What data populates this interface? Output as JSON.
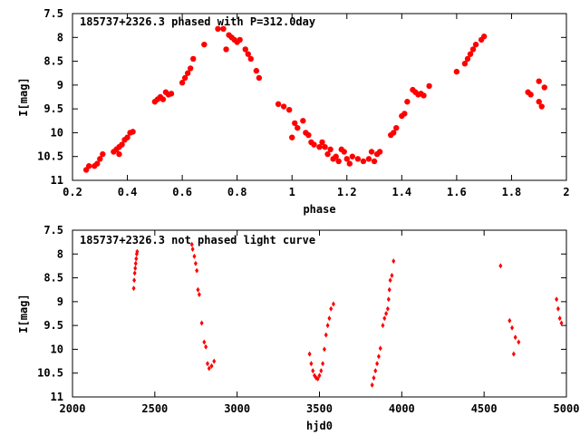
{
  "chart_data": [
    {
      "type": "scatter",
      "title": "185737+2326.3 phased with P=312.0day",
      "xlabel": "phase",
      "ylabel": "I[mag]",
      "xlim": [
        0.2,
        2
      ],
      "ylim": [
        11,
        7.5
      ],
      "y_inverted": true,
      "xticks": [
        0.2,
        0.4,
        0.6,
        0.8,
        1,
        1.2,
        1.4,
        1.6,
        1.8,
        2
      ],
      "xtick_labels": [
        "0.2",
        "0.4",
        "0.6",
        "0.8",
        "1",
        "1.2",
        "1.4",
        "1.6",
        "1.8",
        "2"
      ],
      "yticks": [
        7.5,
        8,
        8.5,
        9,
        9.5,
        10,
        10.5,
        11
      ],
      "ytick_labels": [
        "7.5",
        "8",
        "8.5",
        "9",
        "9.5",
        "10",
        "10.5",
        "11"
      ],
      "marker": "filled-circle",
      "series": [
        {
          "color": "#ff0000",
          "points": [
            [
              0.25,
              10.78
            ],
            [
              0.26,
              10.7
            ],
            [
              0.28,
              10.7
            ],
            [
              0.29,
              10.65
            ],
            [
              0.3,
              10.55
            ],
            [
              0.31,
              10.45
            ],
            [
              0.35,
              10.4
            ],
            [
              0.36,
              10.35
            ],
            [
              0.37,
              10.45
            ],
            [
              0.37,
              10.3
            ],
            [
              0.38,
              10.25
            ],
            [
              0.39,
              10.15
            ],
            [
              0.4,
              10.1
            ],
            [
              0.41,
              10.0
            ],
            [
              0.42,
              9.98
            ],
            [
              0.5,
              9.35
            ],
            [
              0.51,
              9.3
            ],
            [
              0.52,
              9.25
            ],
            [
              0.53,
              9.3
            ],
            [
              0.54,
              9.15
            ],
            [
              0.55,
              9.2
            ],
            [
              0.56,
              9.18
            ],
            [
              0.6,
              8.95
            ],
            [
              0.61,
              8.85
            ],
            [
              0.62,
              8.75
            ],
            [
              0.63,
              8.65
            ],
            [
              0.64,
              8.45
            ],
            [
              0.68,
              8.15
            ],
            [
              0.73,
              7.82
            ],
            [
              0.75,
              7.82
            ],
            [
              0.76,
              8.25
            ],
            [
              0.77,
              7.95
            ],
            [
              0.78,
              8.0
            ],
            [
              0.79,
              8.05
            ],
            [
              0.8,
              8.1
            ],
            [
              0.81,
              8.05
            ],
            [
              0.83,
              8.25
            ],
            [
              0.84,
              8.35
            ],
            [
              0.85,
              8.45
            ],
            [
              0.87,
              8.7
            ],
            [
              0.88,
              8.85
            ],
            [
              0.95,
              9.4
            ],
            [
              0.97,
              9.45
            ],
            [
              0.99,
              9.52
            ],
            [
              1.0,
              10.1
            ],
            [
              1.01,
              9.8
            ],
            [
              1.02,
              9.9
            ],
            [
              1.04,
              9.75
            ],
            [
              1.05,
              10.0
            ],
            [
              1.06,
              10.05
            ],
            [
              1.07,
              10.2
            ],
            [
              1.08,
              10.25
            ],
            [
              1.1,
              10.3
            ],
            [
              1.11,
              10.2
            ],
            [
              1.12,
              10.3
            ],
            [
              1.13,
              10.45
            ],
            [
              1.14,
              10.35
            ],
            [
              1.15,
              10.55
            ],
            [
              1.16,
              10.5
            ],
            [
              1.17,
              10.6
            ],
            [
              1.18,
              10.35
            ],
            [
              1.19,
              10.4
            ],
            [
              1.2,
              10.55
            ],
            [
              1.21,
              10.65
            ],
            [
              1.22,
              10.5
            ],
            [
              1.24,
              10.55
            ],
            [
              1.26,
              10.6
            ],
            [
              1.28,
              10.55
            ],
            [
              1.29,
              10.4
            ],
            [
              1.3,
              10.6
            ],
            [
              1.31,
              10.45
            ],
            [
              1.32,
              10.4
            ],
            [
              1.36,
              10.05
            ],
            [
              1.37,
              10.0
            ],
            [
              1.38,
              9.9
            ],
            [
              1.4,
              9.65
            ],
            [
              1.41,
              9.6
            ],
            [
              1.42,
              9.35
            ],
            [
              1.44,
              9.1
            ],
            [
              1.45,
              9.15
            ],
            [
              1.46,
              9.2
            ],
            [
              1.47,
              9.18
            ],
            [
              1.48,
              9.22
            ],
            [
              1.5,
              9.02
            ],
            [
              1.6,
              8.72
            ],
            [
              1.63,
              8.55
            ],
            [
              1.64,
              8.45
            ],
            [
              1.65,
              8.35
            ],
            [
              1.66,
              8.25
            ],
            [
              1.67,
              8.15
            ],
            [
              1.69,
              8.05
            ],
            [
              1.7,
              7.98
            ],
            [
              1.86,
              9.15
            ],
            [
              1.87,
              9.2
            ],
            [
              1.9,
              8.92
            ],
            [
              1.9,
              9.35
            ],
            [
              1.91,
              9.45
            ],
            [
              1.92,
              9.05
            ]
          ]
        }
      ]
    },
    {
      "type": "scatter",
      "title": "185737+2326.3 not phased light curve",
      "xlabel": "hjd0",
      "ylabel": "I[mag]",
      "xlim": [
        2000,
        5000
      ],
      "ylim": [
        11,
        7.5
      ],
      "y_inverted": true,
      "xticks": [
        2000,
        2500,
        3000,
        3500,
        4000,
        4500,
        5000
      ],
      "xtick_labels": [
        "2000",
        "2500",
        "3000",
        "3500",
        "4000",
        "4500",
        "5000"
      ],
      "yticks": [
        7.5,
        8,
        8.5,
        9,
        9.5,
        10,
        10.5,
        11
      ],
      "ytick_labels": [
        "7.5",
        "8",
        "8.5",
        "9",
        "9.5",
        "10",
        "10.5",
        "11"
      ],
      "marker": "small-diamond",
      "series": [
        {
          "color": "#ff0000",
          "points": [
            [
              2372,
              8.72
            ],
            [
              2375,
              8.55
            ],
            [
              2378,
              8.4
            ],
            [
              2381,
              8.3
            ],
            [
              2384,
              8.2
            ],
            [
              2387,
              8.1
            ],
            [
              2390,
              8.0
            ],
            [
              2393,
              7.95
            ],
            [
              2725,
              7.8
            ],
            [
              2730,
              7.9
            ],
            [
              2740,
              8.05
            ],
            [
              2748,
              8.2
            ],
            [
              2755,
              8.35
            ],
            [
              2762,
              8.75
            ],
            [
              2770,
              8.85
            ],
            [
              2785,
              9.45
            ],
            [
              2800,
              9.85
            ],
            [
              2810,
              9.95
            ],
            [
              2820,
              10.3
            ],
            [
              2830,
              10.4
            ],
            [
              2845,
              10.35
            ],
            [
              2860,
              10.25
            ],
            [
              3440,
              10.1
            ],
            [
              3450,
              10.3
            ],
            [
              3460,
              10.45
            ],
            [
              3470,
              10.55
            ],
            [
              3480,
              10.6
            ],
            [
              3490,
              10.62
            ],
            [
              3500,
              10.55
            ],
            [
              3510,
              10.45
            ],
            [
              3520,
              10.3
            ],
            [
              3530,
              10.0
            ],
            [
              3540,
              9.7
            ],
            [
              3550,
              9.5
            ],
            [
              3560,
              9.35
            ],
            [
              3570,
              9.15
            ],
            [
              3585,
              9.05
            ],
            [
              3820,
              10.75
            ],
            [
              3830,
              10.6
            ],
            [
              3840,
              10.45
            ],
            [
              3850,
              10.3
            ],
            [
              3860,
              10.15
            ],
            [
              3870,
              9.98
            ],
            [
              3885,
              9.5
            ],
            [
              3895,
              9.35
            ],
            [
              3905,
              9.25
            ],
            [
              3915,
              9.15
            ],
            [
              3920,
              8.95
            ],
            [
              3925,
              8.75
            ],
            [
              3930,
              8.55
            ],
            [
              3940,
              8.45
            ],
            [
              3950,
              8.15
            ],
            [
              4600,
              8.25
            ],
            [
              4655,
              9.4
            ],
            [
              4670,
              9.55
            ],
            [
              4680,
              10.1
            ],
            [
              4690,
              9.75
            ],
            [
              4710,
              9.85
            ],
            [
              4940,
              8.95
            ],
            [
              4950,
              9.15
            ],
            [
              4960,
              9.35
            ],
            [
              4970,
              9.45
            ]
          ]
        }
      ]
    }
  ]
}
